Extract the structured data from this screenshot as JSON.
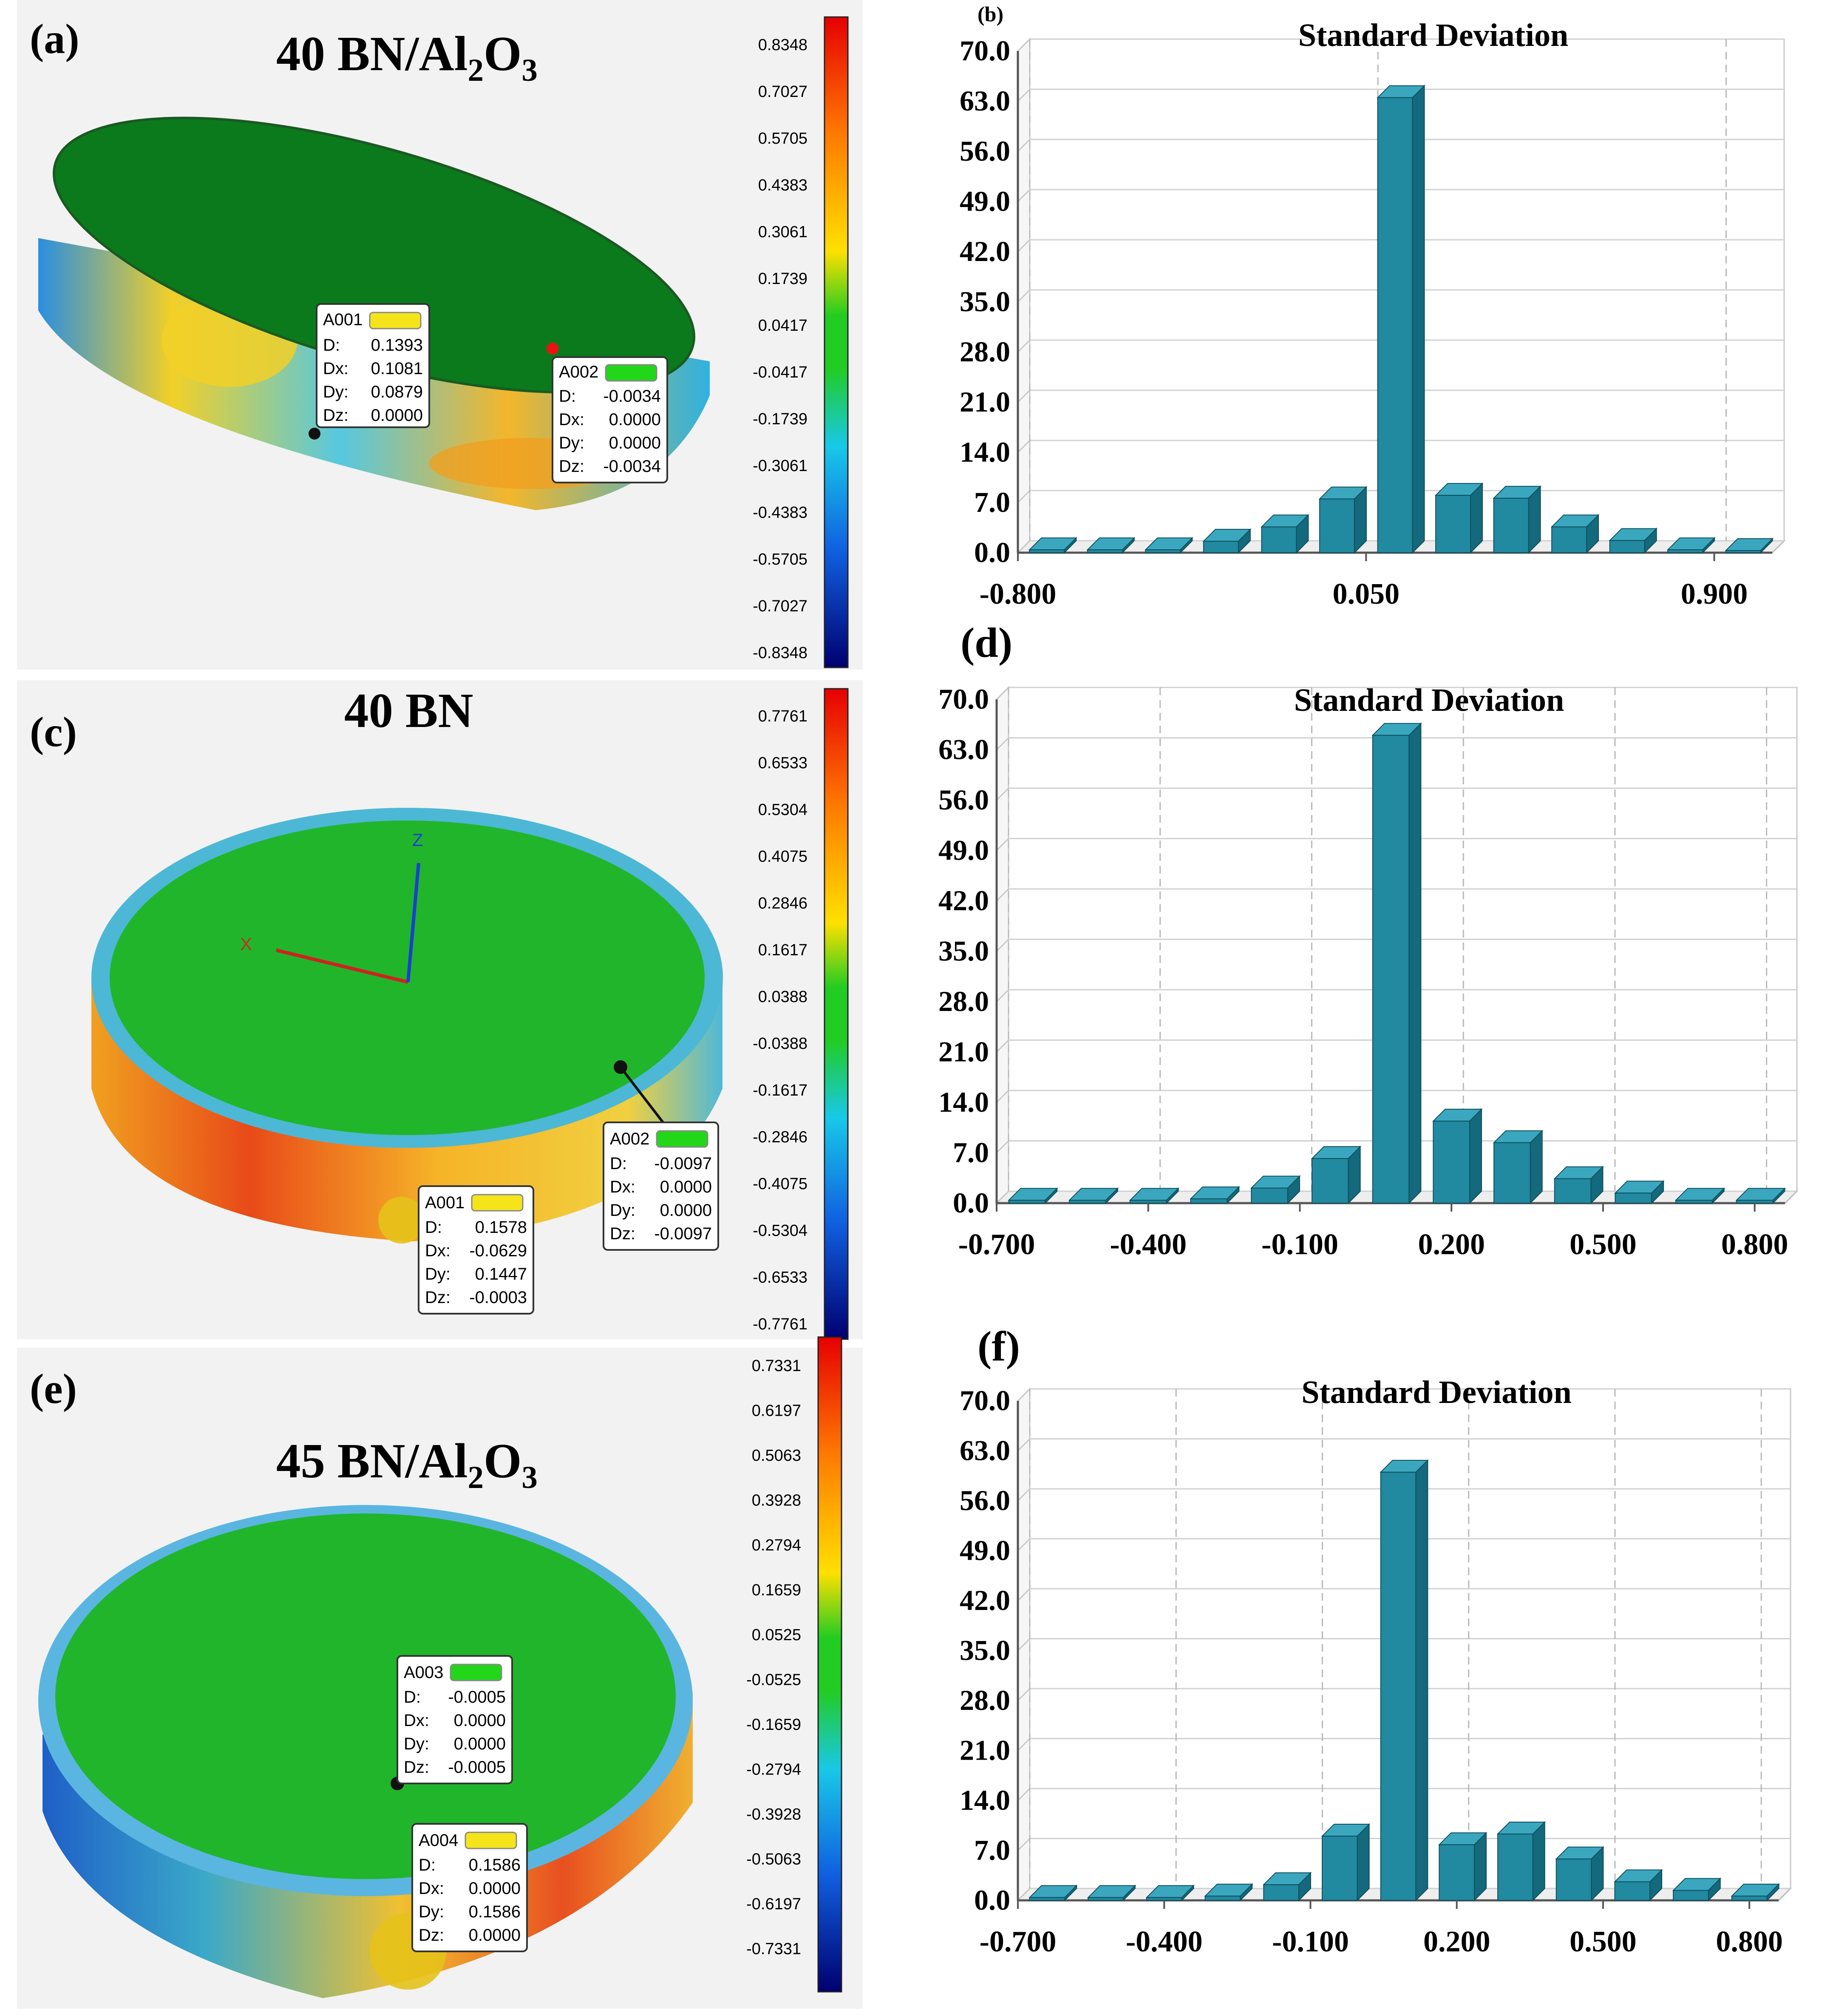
{
  "panels": [
    {
      "letter": "(a)",
      "title_main": "40 BN/Al",
      "title_sub1": "2",
      "title_mid": "O",
      "title_sub2": "3",
      "scale_values": [
        "0.8348",
        "0.7027",
        "0.5705",
        "0.4383",
        "0.3061",
        "0.1739",
        "0.0417",
        "-0.0417",
        "-0.1739",
        "-0.3061",
        "-0.4383",
        "-0.5705",
        "-0.7027",
        "-0.8348"
      ],
      "side_color": "#2f9ed6",
      "top_color": "#0b7a1c",
      "callouts": [
        {
          "tag": "A001",
          "tag_color": "#f5e41a",
          "D": "0.1393",
          "Dx": "0.1081",
          "Dy": "0.0879",
          "Dz": "0.0000"
        },
        {
          "tag": "A002",
          "tag_color": "#22d61a",
          "D": "-0.0034",
          "Dx": "0.0000",
          "Dy": "0.0000",
          "Dz": "-0.0034"
        }
      ]
    },
    {
      "letter": "(c)",
      "title_main": "40 BN",
      "scale_values": [
        "0.7761",
        "0.6533",
        "0.5304",
        "0.4075",
        "0.2846",
        "0.1617",
        "0.0388",
        "-0.0388",
        "-0.1617",
        "-0.2846",
        "-0.4075",
        "-0.5304",
        "-0.6533",
        "-0.7761"
      ],
      "side_color": "#f0a020",
      "top_color": "#21b52b",
      "axis_x": "X",
      "axis_z": "Z",
      "callouts": [
        {
          "tag": "A002",
          "tag_color": "#22d61a",
          "D": "-0.0097",
          "Dx": "0.0000",
          "Dy": "0.0000",
          "Dz": "-0.0097"
        },
        {
          "tag": "A001",
          "tag_color": "#f5e41a",
          "D": "0.1578",
          "Dx": "-0.0629",
          "Dy": "0.1447",
          "Dz": "-0.0003"
        }
      ]
    },
    {
      "letter": "(e)",
      "title_main": "45 BN/Al",
      "title_sub1": "2",
      "title_mid": "O",
      "title_sub2": "3",
      "scale_values": [
        "0.7331",
        "0.6197",
        "0.5063",
        "0.3928",
        "0.2794",
        "0.1659",
        "0.0525",
        "-0.0525",
        "-0.1659",
        "-0.2794",
        "-0.3928",
        "-0.5063",
        "-0.6197",
        "-0.7331"
      ],
      "side_color": "#e8a230",
      "top_color": "#21b52b",
      "callouts": [
        {
          "tag": "A003",
          "tag_color": "#22d61a",
          "D": "-0.0005",
          "Dx": "0.0000",
          "Dy": "0.0000",
          "Dz": "-0.0005"
        },
        {
          "tag": "A004",
          "tag_color": "#f5e41a",
          "D": "0.1586",
          "Dx": "0.0000",
          "Dy": "0.1586",
          "Dz": "0.0000"
        }
      ]
    }
  ],
  "chart_data": [
    {
      "type": "bar",
      "panel_label": "(b)",
      "title": "Standard Deviation",
      "y_ticks": [
        "0.0",
        "7.0",
        "14.0",
        "21.0",
        "28.0",
        "35.0",
        "42.0",
        "49.0",
        "56.0",
        "63.0",
        "70.0"
      ],
      "ylim": [
        0,
        70
      ],
      "x_tick_labels": [
        "-0.800",
        "0.050",
        "0.900"
      ],
      "x_tick_bins": [
        0,
        6,
        12
      ],
      "values": [
        0.4,
        0.4,
        0.4,
        1.6,
        3.6,
        7.5,
        63.5,
        8.0,
        7.6,
        3.6,
        1.7,
        0.4,
        0.3
      ],
      "bar_color": "#2189a0",
      "grid": true
    },
    {
      "type": "bar",
      "panel_label": "(d)",
      "title": "Standard Deviation",
      "y_ticks": [
        "0.0",
        "7.0",
        "14.0",
        "21.0",
        "28.0",
        "35.0",
        "42.0",
        "49.0",
        "56.0",
        "63.0",
        "70.0"
      ],
      "ylim": [
        0,
        70
      ],
      "x_tick_labels": [
        "-0.700",
        "-0.400",
        "-0.100",
        "0.200",
        "0.500",
        "0.800"
      ],
      "x_tick_bins": [
        0,
        2.5,
        5,
        7.5,
        10,
        12.5
      ],
      "values": [
        0.4,
        0.4,
        0.4,
        0.6,
        2.1,
        6.2,
        65.0,
        11.4,
        8.4,
        3.4,
        1.4,
        0.4,
        0.4
      ],
      "bar_color": "#2189a0",
      "grid": true
    },
    {
      "type": "bar",
      "panel_label": "(f)",
      "title": "Standard Deviation",
      "y_ticks": [
        "0.0",
        "7.0",
        "14.0",
        "21.0",
        "28.0",
        "35.0",
        "42.0",
        "49.0",
        "56.0",
        "63.0",
        "70.0"
      ],
      "ylim": [
        0,
        70
      ],
      "x_tick_labels": [
        "-0.700",
        "-0.400",
        "-0.100",
        "0.200",
        "0.500",
        "0.800"
      ],
      "x_tick_bins": [
        0,
        2.5,
        5,
        7.5,
        10,
        12.5
      ],
      "values": [
        0.4,
        0.4,
        0.4,
        0.6,
        2.2,
        9.0,
        60.0,
        7.8,
        9.3,
        5.8,
        2.6,
        1.4,
        0.6
      ],
      "bar_color": "#2189a0",
      "grid": true
    }
  ]
}
